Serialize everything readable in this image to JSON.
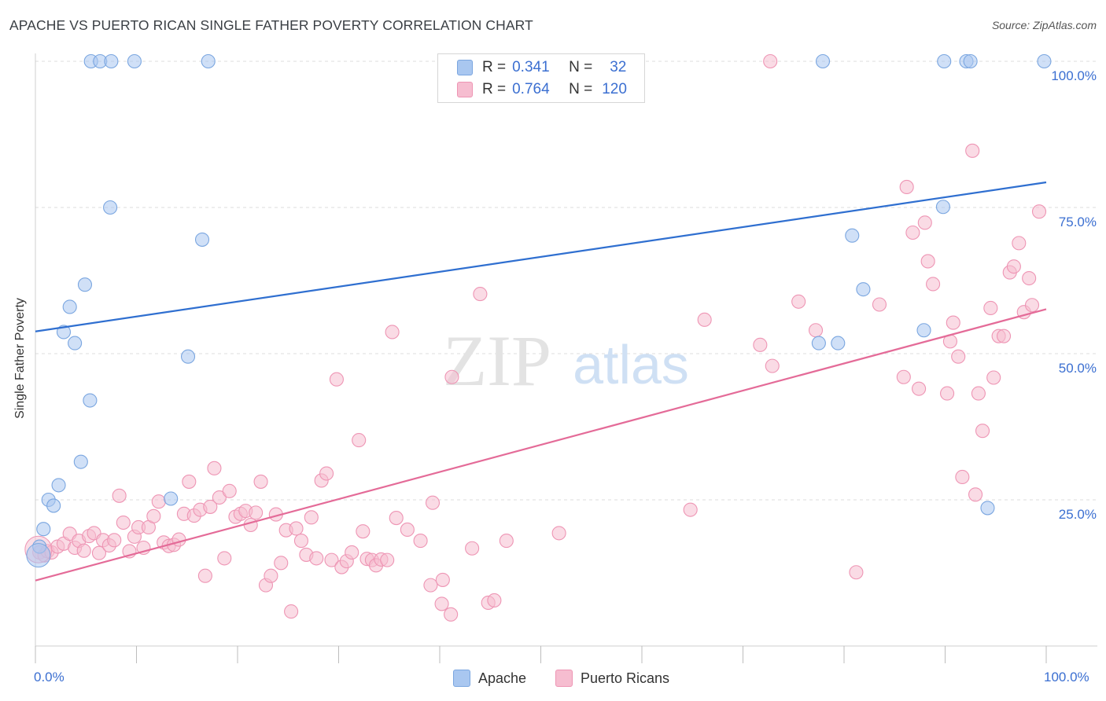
{
  "title": "APACHE VS PUERTO RICAN SINGLE FATHER POVERTY CORRELATION CHART",
  "source": "Source: ZipAtlas.com",
  "watermark": {
    "zip": "ZIP",
    "atlas": "atlas"
  },
  "colors": {
    "apache_fill": "#a9c7f0",
    "apache_stroke": "#7aa6e0",
    "apache_line": "#2f6fd0",
    "pr_fill": "#f6bdd0",
    "pr_stroke": "#ee95b4",
    "pr_line": "#e46b98",
    "axis_text": "#3b6fd1",
    "grid": "#dcdcdc"
  },
  "legend_top": {
    "rows": [
      {
        "r_label": "R =",
        "r_value": "0.341",
        "n_label": "N =",
        "n_value": "32"
      },
      {
        "r_label": "R =",
        "r_value": "0.764",
        "n_label": "N =",
        "n_value": "120"
      }
    ]
  },
  "legend_bottom": [
    "Apache",
    "Puerto Ricans"
  ],
  "chart_data": {
    "type": "scatter",
    "title": "APACHE VS PUERTO RICAN SINGLE FATHER POVERTY CORRELATION CHART",
    "xlabel": "",
    "ylabel": "Single Father Poverty",
    "xlim": [
      0,
      100
    ],
    "ylim": [
      0,
      100
    ],
    "x_tick_labels": [
      "0.0%",
      "100.0%"
    ],
    "y_tick_labels": [
      "25.0%",
      "50.0%",
      "75.0%",
      "100.0%"
    ],
    "y_grid": [
      25,
      50,
      75,
      100
    ],
    "grid": true,
    "legend_position": "top-center",
    "series": [
      {
        "name": "Apache",
        "r": 0.341,
        "n": 32,
        "trend": [
          [
            0,
            53.8
          ],
          [
            100,
            79.3
          ]
        ],
        "points": [
          [
            0.4,
            17
          ],
          [
            0.8,
            20
          ],
          [
            1.3,
            25
          ],
          [
            1.8,
            24
          ],
          [
            2.3,
            27.5
          ],
          [
            2.8,
            53.7
          ],
          [
            3.4,
            58
          ],
          [
            3.9,
            51.8
          ],
          [
            4.5,
            31.5
          ],
          [
            4.9,
            61.8
          ],
          [
            5.4,
            42
          ],
          [
            5.5,
            100
          ],
          [
            6.4,
            100
          ],
          [
            7.5,
            100
          ],
          [
            7.4,
            75
          ],
          [
            9.8,
            100
          ],
          [
            13.4,
            25.2
          ],
          [
            15.1,
            49.5
          ],
          [
            16.5,
            69.5
          ],
          [
            17.1,
            100
          ],
          [
            77.9,
            100
          ],
          [
            77.5,
            51.8
          ],
          [
            79.4,
            51.8
          ],
          [
            80.8,
            70.2
          ],
          [
            81.9,
            61
          ],
          [
            87.9,
            54
          ],
          [
            89.9,
            100
          ],
          [
            89.8,
            75.1
          ],
          [
            92.1,
            100
          ],
          [
            92.5,
            100
          ],
          [
            94.2,
            23.6
          ],
          [
            99.8,
            100
          ]
        ]
      },
      {
        "name": "Puerto Ricans",
        "r": 0.764,
        "n": 120,
        "trend": [
          [
            0,
            11.2
          ],
          [
            100,
            57.6
          ]
        ],
        "points": [
          [
            0.4,
            16
          ],
          [
            0.9,
            15.5
          ],
          [
            1.2,
            16.2
          ],
          [
            1.6,
            16
          ],
          [
            2.2,
            17
          ],
          [
            2.8,
            17.5
          ],
          [
            3.4,
            19.2
          ],
          [
            3.9,
            16.8
          ],
          [
            4.3,
            18
          ],
          [
            4.8,
            16.3
          ],
          [
            5.3,
            18.8
          ],
          [
            5.8,
            19.3
          ],
          [
            6.3,
            15.9
          ],
          [
            6.7,
            18.1
          ],
          [
            7.3,
            17.2
          ],
          [
            7.8,
            18.1
          ],
          [
            8.3,
            25.7
          ],
          [
            8.7,
            21.1
          ],
          [
            9.3,
            16.2
          ],
          [
            9.8,
            18.7
          ],
          [
            10.2,
            20.3
          ],
          [
            10.7,
            16.8
          ],
          [
            11.2,
            20.3
          ],
          [
            11.7,
            22.2
          ],
          [
            12.2,
            24.7
          ],
          [
            12.7,
            17.7
          ],
          [
            13.2,
            17.1
          ],
          [
            13.7,
            17.3
          ],
          [
            14.2,
            18.2
          ],
          [
            14.7,
            22.6
          ],
          [
            15.2,
            28.1
          ],
          [
            15.7,
            22.3
          ],
          [
            16.3,
            23.3
          ],
          [
            16.8,
            12
          ],
          [
            17.3,
            23.8
          ],
          [
            17.7,
            30.4
          ],
          [
            18.2,
            25.4
          ],
          [
            18.7,
            15
          ],
          [
            19.2,
            26.5
          ],
          [
            19.8,
            22.1
          ],
          [
            20.3,
            22.6
          ],
          [
            20.8,
            23.1
          ],
          [
            21.3,
            20.7
          ],
          [
            21.8,
            22.8
          ],
          [
            22.3,
            28.1
          ],
          [
            22.8,
            10.4
          ],
          [
            23.3,
            12
          ],
          [
            23.8,
            22.5
          ],
          [
            24.3,
            14.2
          ],
          [
            24.8,
            19.8
          ],
          [
            25.3,
            5.9
          ],
          [
            25.8,
            20.1
          ],
          [
            26.3,
            18
          ],
          [
            26.8,
            15.6
          ],
          [
            27.3,
            22
          ],
          [
            27.8,
            15
          ],
          [
            28.3,
            28.3
          ],
          [
            28.8,
            29.5
          ],
          [
            29.3,
            14.7
          ],
          [
            29.8,
            45.6
          ],
          [
            30.3,
            13.5
          ],
          [
            30.8,
            14.5
          ],
          [
            31.3,
            16
          ],
          [
            32.0,
            35.2
          ],
          [
            32.4,
            19.6
          ],
          [
            32.8,
            14.9
          ],
          [
            33.3,
            14.7
          ],
          [
            33.7,
            13.8
          ],
          [
            34.2,
            14.8
          ],
          [
            34.8,
            14.7
          ],
          [
            35.3,
            53.7
          ],
          [
            35.7,
            21.9
          ],
          [
            36.8,
            19.9
          ],
          [
            38.1,
            18
          ],
          [
            39.1,
            10.4
          ],
          [
            39.3,
            24.5
          ],
          [
            40.3,
            11.3
          ],
          [
            40.2,
            7.2
          ],
          [
            41.1,
            5.4
          ],
          [
            41.2,
            46
          ],
          [
            43.2,
            16.7
          ],
          [
            44.0,
            60.2
          ],
          [
            44.8,
            7.4
          ],
          [
            45.4,
            7.8
          ],
          [
            46.6,
            18
          ],
          [
            51.8,
            19.3
          ],
          [
            64.8,
            23.3
          ],
          [
            66.2,
            55.8
          ],
          [
            71.7,
            51.5
          ],
          [
            72.9,
            47.9
          ],
          [
            75.5,
            58.9
          ],
          [
            77.2,
            54
          ],
          [
            81.2,
            12.6
          ],
          [
            83.5,
            58.4
          ],
          [
            85.9,
            46
          ],
          [
            86.2,
            78.5
          ],
          [
            86.8,
            70.7
          ],
          [
            87.4,
            44
          ],
          [
            88.0,
            72.4
          ],
          [
            88.3,
            65.8
          ],
          [
            88.8,
            61.9
          ],
          [
            90.2,
            43.2
          ],
          [
            90.5,
            52.1
          ],
          [
            90.8,
            55.3
          ],
          [
            91.3,
            49.5
          ],
          [
            91.7,
            28.9
          ],
          [
            92.7,
            84.7
          ],
          [
            93.0,
            25.9
          ],
          [
            93.3,
            43.2
          ],
          [
            93.7,
            36.8
          ],
          [
            94.5,
            57.8
          ],
          [
            94.8,
            45.9
          ],
          [
            95.3,
            53
          ],
          [
            95.8,
            53
          ],
          [
            96.4,
            63.9
          ],
          [
            96.8,
            64.9
          ],
          [
            97.3,
            68.9
          ],
          [
            97.8,
            57.1
          ],
          [
            98.3,
            62.9
          ],
          [
            98.6,
            58.3
          ],
          [
            99.3,
            74.3
          ],
          [
            72.7,
            100
          ]
        ]
      }
    ]
  }
}
